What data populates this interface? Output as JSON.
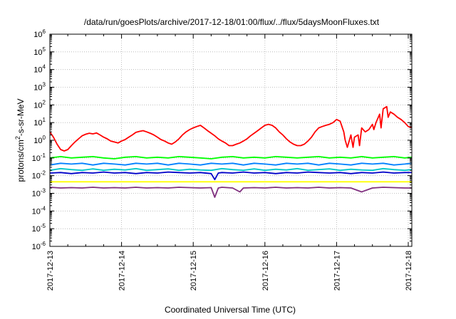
{
  "chart_data": {
    "type": "line",
    "title": "/data/run/goesPlots/archive/2017-12-18/01:00/flux/../flux/5daysMoonFluxes.txt",
    "xlabel": "Coordinated Universal Time (UTC)",
    "ylabel_base": "protons/cm",
    "ylabel_sup": "2",
    "ylabel_rest": "-s-sr-MeV",
    "y_scale": "log",
    "grid": true,
    "legend": "none",
    "xlim": [
      "2017-12-13 00:00",
      "2017-12-18 02:00"
    ],
    "ylim_exp": [
      -6,
      6
    ],
    "y_ticks": [
      {
        "base": "10",
        "exp": "-6"
      },
      {
        "base": "10",
        "exp": "-5"
      },
      {
        "base": "10",
        "exp": "-4"
      },
      {
        "base": "10",
        "exp": "-3"
      },
      {
        "base": "10",
        "exp": "-2"
      },
      {
        "base": "10",
        "exp": "-1"
      },
      {
        "base": "10",
        "exp": "0"
      },
      {
        "base": "10",
        "exp": "1"
      },
      {
        "base": "10",
        "exp": "2"
      },
      {
        "base": "10",
        "exp": "3"
      },
      {
        "base": "10",
        "exp": "4"
      },
      {
        "base": "10",
        "exp": "5"
      },
      {
        "base": "10",
        "exp": "6"
      }
    ],
    "x_ticks": [
      "2017-12-13",
      "2017-12-14",
      "2017-12-15",
      "2017-12-16",
      "2017-12-17",
      "2017-12-18"
    ],
    "series": [
      {
        "color": "#ff0000",
        "x": [
          0,
          0.05,
          0.1,
          0.15,
          0.2,
          0.25,
          0.3,
          0.35,
          0.4,
          0.45,
          0.5,
          0.55,
          0.6,
          0.65,
          0.7,
          0.75,
          0.8,
          0.85,
          0.9,
          0.95,
          1.0,
          1.05,
          1.1,
          1.15,
          1.2,
          1.25,
          1.3,
          1.35,
          1.4,
          1.45,
          1.5,
          1.55,
          1.6,
          1.65,
          1.7,
          1.75,
          1.8,
          1.85,
          1.9,
          1.95,
          2.0,
          2.05,
          2.1,
          2.15,
          2.2,
          2.25,
          2.3,
          2.35,
          2.4,
          2.45,
          2.5,
          2.55,
          2.6,
          2.65,
          2.7,
          2.75,
          2.8,
          2.85,
          2.9,
          2.95,
          3.0,
          3.05,
          3.1,
          3.15,
          3.2,
          3.25,
          3.3,
          3.35,
          3.4,
          3.45,
          3.5,
          3.55,
          3.6,
          3.65,
          3.7,
          3.75,
          3.8,
          3.85,
          3.9,
          3.95,
          4.0,
          4.05,
          4.1,
          4.12,
          4.15,
          4.2,
          4.23,
          4.25,
          4.3,
          4.32,
          4.35,
          4.4,
          4.45,
          4.5,
          4.52,
          4.55,
          4.6,
          4.62,
          4.65,
          4.7,
          4.72,
          4.75,
          4.8,
          4.85,
          4.9,
          4.95,
          5.0,
          5.05
        ],
        "values": [
          3.0,
          1.5,
          0.6,
          0.3,
          0.25,
          0.3,
          0.5,
          0.8,
          1.2,
          1.8,
          2.2,
          2.5,
          2.3,
          2.6,
          2.0,
          1.5,
          1.2,
          0.9,
          0.8,
          0.7,
          0.9,
          1.1,
          1.5,
          2.0,
          2.8,
          3.2,
          3.5,
          3.0,
          2.5,
          2.0,
          1.5,
          1.1,
          0.9,
          0.7,
          0.6,
          0.8,
          1.2,
          2.0,
          3.0,
          4.0,
          5.0,
          6.0,
          7.0,
          5.0,
          3.5,
          2.5,
          1.8,
          1.2,
          0.9,
          0.7,
          0.5,
          0.5,
          0.6,
          0.7,
          0.9,
          1.2,
          1.8,
          2.5,
          3.5,
          5.0,
          7.0,
          8.0,
          7.0,
          5.0,
          3.0,
          2.0,
          1.2,
          0.8,
          0.6,
          0.5,
          0.5,
          0.6,
          0.9,
          1.5,
          3.0,
          5.0,
          6.0,
          7.0,
          8.0,
          10.0,
          15.0,
          12.0,
          3.0,
          1.0,
          0.4,
          2.0,
          0.4,
          1.5,
          2.0,
          0.5,
          5.0,
          3.0,
          4.0,
          8.0,
          4.0,
          10.0,
          30.0,
          5.0,
          60.0,
          80.0,
          20.0,
          40.0,
          30.0,
          20.0,
          15.0,
          10.0,
          6.0,
          5.0
        ]
      },
      {
        "color": "#00ff00",
        "x": [
          0,
          0.15,
          0.3,
          0.45,
          0.6,
          0.75,
          0.9,
          1.05,
          1.2,
          1.35,
          1.5,
          1.65,
          1.8,
          1.95,
          2.1,
          2.25,
          2.4,
          2.55,
          2.7,
          2.85,
          3.0,
          3.15,
          3.3,
          3.45,
          3.6,
          3.75,
          3.9,
          4.05,
          4.2,
          4.35,
          4.5,
          4.65,
          4.8,
          4.95,
          5.05
        ],
        "values": [
          0.1,
          0.12,
          0.1,
          0.11,
          0.12,
          0.1,
          0.09,
          0.11,
          0.12,
          0.1,
          0.11,
          0.1,
          0.12,
          0.11,
          0.1,
          0.09,
          0.11,
          0.12,
          0.1,
          0.11,
          0.1,
          0.12,
          0.11,
          0.1,
          0.11,
          0.12,
          0.1,
          0.11,
          0.1,
          0.12,
          0.1,
          0.11,
          0.12,
          0.1,
          0.11
        ]
      },
      {
        "color": "#0080ff",
        "x": [
          0,
          0.15,
          0.3,
          0.45,
          0.6,
          0.75,
          0.9,
          1.05,
          1.2,
          1.35,
          1.5,
          1.65,
          1.8,
          1.95,
          2.1,
          2.25,
          2.4,
          2.55,
          2.7,
          2.85,
          3.0,
          3.15,
          3.3,
          3.45,
          3.6,
          3.75,
          3.9,
          4.05,
          4.2,
          4.35,
          4.5,
          4.65,
          4.8,
          4.95,
          5.05
        ],
        "values": [
          0.04,
          0.05,
          0.045,
          0.05,
          0.04,
          0.05,
          0.045,
          0.04,
          0.05,
          0.045,
          0.05,
          0.04,
          0.05,
          0.045,
          0.04,
          0.05,
          0.045,
          0.05,
          0.04,
          0.05,
          0.045,
          0.04,
          0.05,
          0.045,
          0.05,
          0.04,
          0.05,
          0.045,
          0.04,
          0.05,
          0.045,
          0.05,
          0.04,
          0.045,
          0.05
        ]
      },
      {
        "color": "#00c8c8",
        "x": [
          0,
          0.15,
          0.3,
          0.45,
          0.6,
          0.75,
          0.9,
          1.05,
          1.2,
          1.35,
          1.5,
          1.65,
          1.8,
          1.95,
          2.1,
          2.25,
          2.4,
          2.55,
          2.7,
          2.85,
          3.0,
          3.15,
          3.3,
          3.45,
          3.6,
          3.75,
          3.9,
          4.05,
          4.2,
          4.35,
          4.5,
          4.65,
          4.8,
          4.95,
          5.05
        ],
        "values": [
          0.02,
          0.025,
          0.022,
          0.02,
          0.024,
          0.02,
          0.023,
          0.021,
          0.025,
          0.02,
          0.022,
          0.024,
          0.02,
          0.023,
          0.021,
          0.02,
          0.025,
          0.022,
          0.02,
          0.024,
          0.02,
          0.023,
          0.021,
          0.025,
          0.02,
          0.022,
          0.024,
          0.02,
          0.023,
          0.021,
          0.02,
          0.025,
          0.022,
          0.02,
          0.022
        ]
      },
      {
        "color": "#0000c8",
        "x": [
          0,
          0.15,
          0.3,
          0.45,
          0.6,
          0.75,
          0.9,
          1.05,
          1.2,
          1.35,
          1.5,
          1.65,
          1.8,
          1.95,
          2.1,
          2.25,
          2.3,
          2.35,
          2.4,
          2.55,
          2.7,
          2.85,
          3.0,
          3.15,
          3.3,
          3.45,
          3.6,
          3.75,
          3.9,
          4.05,
          4.2,
          4.35,
          4.5,
          4.65,
          4.8,
          4.95,
          5.05
        ],
        "values": [
          0.014,
          0.015,
          0.013,
          0.015,
          0.014,
          0.016,
          0.014,
          0.015,
          0.013,
          0.015,
          0.014,
          0.016,
          0.015,
          0.014,
          0.015,
          0.013,
          0.006,
          0.014,
          0.015,
          0.014,
          0.016,
          0.014,
          0.015,
          0.013,
          0.015,
          0.014,
          0.016,
          0.015,
          0.014,
          0.015,
          0.013,
          0.015,
          0.014,
          0.016,
          0.014,
          0.015,
          0.015
        ]
      },
      {
        "color": "#ffff00",
        "x": [
          0,
          0.5,
          1.0,
          1.5,
          2.0,
          2.5,
          3.0,
          3.5,
          4.0,
          4.5,
          5.05
        ],
        "values": [
          0.0045,
          0.0045,
          0.0045,
          0.0045,
          0.0045,
          0.0045,
          0.0045,
          0.0045,
          0.0045,
          0.0045,
          0.0045
        ]
      },
      {
        "color": "#80307f",
        "x": [
          0,
          0.15,
          0.3,
          0.45,
          0.6,
          0.75,
          0.9,
          1.05,
          1.2,
          1.35,
          1.5,
          1.65,
          1.8,
          1.95,
          2.1,
          2.25,
          2.3,
          2.35,
          2.4,
          2.55,
          2.65,
          2.7,
          2.85,
          3.0,
          3.15,
          3.3,
          3.45,
          3.6,
          3.75,
          3.9,
          4.05,
          4.2,
          4.35,
          4.5,
          4.65,
          4.8,
          4.95,
          5.05
        ],
        "values": [
          0.0022,
          0.002,
          0.0021,
          0.002,
          0.0022,
          0.002,
          0.0021,
          0.002,
          0.0022,
          0.002,
          0.0021,
          0.002,
          0.0022,
          0.0021,
          0.002,
          0.0021,
          0.0006,
          0.002,
          0.0022,
          0.002,
          0.0012,
          0.002,
          0.0021,
          0.002,
          0.0022,
          0.002,
          0.0021,
          0.002,
          0.0022,
          0.002,
          0.0021,
          0.002,
          0.0012,
          0.002,
          0.0022,
          0.0021,
          0.002,
          0.002
        ]
      }
    ]
  }
}
